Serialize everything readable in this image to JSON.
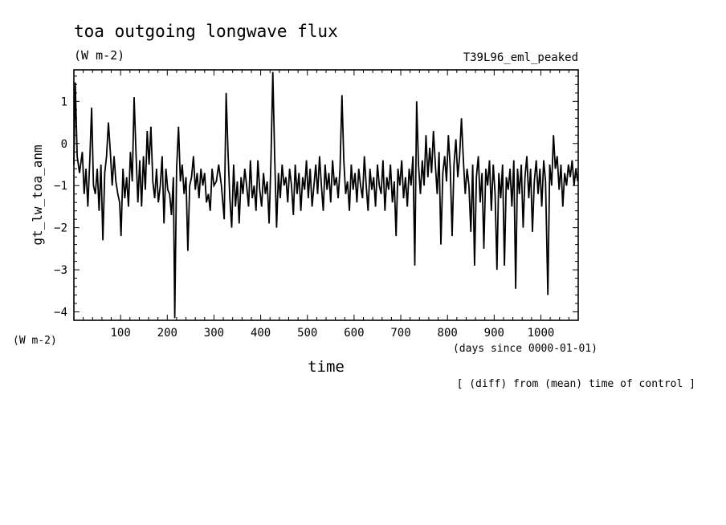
{
  "chart_data": {
    "type": "line",
    "title": "toa outgoing longwave flux",
    "units": "(W m-2)",
    "experiment": "T39L96_eml_peaked",
    "ylabel": "gt_lw_toa_anm",
    "yunits": "(W m-2)",
    "xlabel": "time",
    "xunits": "(days since 0000-01-01)",
    "note": "[ (diff) from (mean) time of control ]",
    "xlim": [
      0,
      1080
    ],
    "ylim": [
      -4.2,
      1.75
    ],
    "xticks": [
      100,
      200,
      300,
      400,
      500,
      600,
      700,
      800,
      900,
      1000
    ],
    "yticks": [
      1,
      0,
      -1,
      -2,
      -3,
      -4
    ],
    "xtick_labels": [
      "100",
      "200",
      "300",
      "400",
      "500",
      "600",
      "700",
      "800",
      "900",
      "1000"
    ],
    "ytick_labels": [
      "1",
      "0",
      "−1",
      "−2",
      "−3",
      "−4"
    ],
    "line_color": "#000000",
    "keypoints": [
      [
        0,
        -0.5
      ],
      [
        3,
        1.45
      ],
      [
        7,
        -0.3
      ],
      [
        12,
        -0.7
      ],
      [
        18,
        -0.2
      ],
      [
        22,
        -1.2
      ],
      [
        26,
        -0.6
      ],
      [
        30,
        -1.5
      ],
      [
        34,
        -0.4
      ],
      [
        38,
        0.85
      ],
      [
        42,
        -1.0
      ],
      [
        46,
        -1.2
      ],
      [
        50,
        -0.6
      ],
      [
        54,
        -1.6
      ],
      [
        58,
        -0.5
      ],
      [
        62,
        -2.3
      ],
      [
        66,
        -0.7
      ],
      [
        70,
        -0.3
      ],
      [
        74,
        0.5
      ],
      [
        78,
        -0.2
      ],
      [
        82,
        -1.0
      ],
      [
        86,
        -0.3
      ],
      [
        90,
        -0.9
      ],
      [
        94,
        -1.2
      ],
      [
        98,
        -1.4
      ],
      [
        101,
        -2.2
      ],
      [
        105,
        -0.6
      ],
      [
        109,
        -1.3
      ],
      [
        113,
        -0.8
      ],
      [
        117,
        -1.5
      ],
      [
        121,
        -0.2
      ],
      [
        125,
        -0.9
      ],
      [
        129,
        1.1
      ],
      [
        133,
        -0.2
      ],
      [
        137,
        -1.4
      ],
      [
        141,
        -0.4
      ],
      [
        145,
        -1.5
      ],
      [
        149,
        -0.3
      ],
      [
        153,
        -1.1
      ],
      [
        157,
        0.3
      ],
      [
        161,
        -0.5
      ],
      [
        165,
        0.4
      ],
      [
        169,
        -0.9
      ],
      [
        173,
        -1.3
      ],
      [
        177,
        -0.6
      ],
      [
        181,
        -1.4
      ],
      [
        185,
        -1.0
      ],
      [
        189,
        -0.3
      ],
      [
        193,
        -1.9
      ],
      [
        197,
        -0.6
      ],
      [
        201,
        -1.1
      ],
      [
        205,
        -1.2
      ],
      [
        209,
        -1.7
      ],
      [
        213,
        -0.8
      ],
      [
        216,
        -4.15
      ],
      [
        220,
        -0.6
      ],
      [
        224,
        0.4
      ],
      [
        228,
        -0.9
      ],
      [
        232,
        -0.5
      ],
      [
        236,
        -1.2
      ],
      [
        240,
        -0.8
      ],
      [
        244,
        -2.55
      ],
      [
        248,
        -1.0
      ],
      [
        252,
        -0.8
      ],
      [
        256,
        -0.3
      ],
      [
        260,
        -1.1
      ],
      [
        264,
        -0.7
      ],
      [
        268,
        -1.3
      ],
      [
        272,
        -0.6
      ],
      [
        276,
        -1.0
      ],
      [
        280,
        -0.7
      ],
      [
        284,
        -1.4
      ],
      [
        288,
        -1.2
      ],
      [
        292,
        -1.6
      ],
      [
        296,
        -0.6
      ],
      [
        300,
        -1.0
      ],
      [
        305,
        -0.9
      ],
      [
        310,
        -0.5
      ],
      [
        316,
        -1.0
      ],
      [
        322,
        -1.8
      ],
      [
        326,
        1.2
      ],
      [
        330,
        -0.2
      ],
      [
        334,
        -1.3
      ],
      [
        338,
        -2.0
      ],
      [
        342,
        -0.5
      ],
      [
        346,
        -1.5
      ],
      [
        350,
        -0.9
      ],
      [
        354,
        -1.9
      ],
      [
        358,
        -0.8
      ],
      [
        362,
        -1.2
      ],
      [
        366,
        -0.6
      ],
      [
        370,
        -1.0
      ],
      [
        374,
        -1.5
      ],
      [
        378,
        -0.4
      ],
      [
        382,
        -1.3
      ],
      [
        386,
        -1.0
      ],
      [
        390,
        -1.6
      ],
      [
        394,
        -0.4
      ],
      [
        398,
        -1.1
      ],
      [
        402,
        -1.5
      ],
      [
        406,
        -0.7
      ],
      [
        410,
        -1.2
      ],
      [
        414,
        -0.9
      ],
      [
        418,
        -1.9
      ],
      [
        422,
        -0.4
      ],
      [
        426,
        1.7
      ],
      [
        430,
        -0.3
      ],
      [
        434,
        -2.0
      ],
      [
        438,
        -0.7
      ],
      [
        442,
        -1.3
      ],
      [
        446,
        -0.5
      ],
      [
        450,
        -1.0
      ],
      [
        454,
        -0.8
      ],
      [
        458,
        -1.4
      ],
      [
        462,
        -0.6
      ],
      [
        466,
        -1.0
      ],
      [
        470,
        -1.7
      ],
      [
        474,
        -0.5
      ],
      [
        478,
        -1.2
      ],
      [
        482,
        -0.7
      ],
      [
        486,
        -1.6
      ],
      [
        490,
        -0.8
      ],
      [
        494,
        -1.1
      ],
      [
        498,
        -0.4
      ],
      [
        502,
        -1.3
      ],
      [
        506,
        -0.6
      ],
      [
        510,
        -1.5
      ],
      [
        514,
        -1.0
      ],
      [
        518,
        -0.5
      ],
      [
        522,
        -1.2
      ],
      [
        526,
        -0.3
      ],
      [
        530,
        -1.0
      ],
      [
        534,
        -1.6
      ],
      [
        538,
        -0.5
      ],
      [
        542,
        -1.1
      ],
      [
        546,
        -0.7
      ],
      [
        550,
        -1.4
      ],
      [
        554,
        -0.4
      ],
      [
        558,
        -1.0
      ],
      [
        562,
        -0.8
      ],
      [
        566,
        -1.3
      ],
      [
        570,
        -0.6
      ],
      [
        574,
        1.15
      ],
      [
        578,
        -0.4
      ],
      [
        582,
        -1.2
      ],
      [
        586,
        -0.9
      ],
      [
        590,
        -1.6
      ],
      [
        594,
        -0.5
      ],
      [
        598,
        -1.1
      ],
      [
        602,
        -0.7
      ],
      [
        606,
        -1.4
      ],
      [
        610,
        -0.6
      ],
      [
        614,
        -1.0
      ],
      [
        618,
        -1.3
      ],
      [
        622,
        -0.3
      ],
      [
        626,
        -1.0
      ],
      [
        630,
        -1.6
      ],
      [
        634,
        -0.6
      ],
      [
        638,
        -1.1
      ],
      [
        642,
        -0.8
      ],
      [
        646,
        -1.5
      ],
      [
        650,
        -0.5
      ],
      [
        654,
        -1.0
      ],
      [
        658,
        -1.2
      ],
      [
        662,
        -0.4
      ],
      [
        666,
        -1.6
      ],
      [
        670,
        -0.8
      ],
      [
        674,
        -1.1
      ],
      [
        678,
        -0.5
      ],
      [
        682,
        -1.4
      ],
      [
        686,
        -0.9
      ],
      [
        690,
        -2.2
      ],
      [
        694,
        -0.6
      ],
      [
        698,
        -1.0
      ],
      [
        702,
        -0.4
      ],
      [
        706,
        -1.3
      ],
      [
        710,
        -0.8
      ],
      [
        714,
        -1.5
      ],
      [
        718,
        -0.6
      ],
      [
        722,
        -1.0
      ],
      [
        726,
        -0.3
      ],
      [
        730,
        -2.9
      ],
      [
        734,
        1.0
      ],
      [
        738,
        -0.5
      ],
      [
        742,
        -1.2
      ],
      [
        746,
        -0.4
      ],
      [
        750,
        -1.0
      ],
      [
        754,
        0.2
      ],
      [
        758,
        -0.8
      ],
      [
        762,
        -0.1
      ],
      [
        766,
        -0.7
      ],
      [
        770,
        0.3
      ],
      [
        774,
        -0.5
      ],
      [
        778,
        -1.2
      ],
      [
        782,
        -0.2
      ],
      [
        786,
        -2.4
      ],
      [
        790,
        -0.7
      ],
      [
        794,
        -0.3
      ],
      [
        798,
        -0.9
      ],
      [
        802,
        0.2
      ],
      [
        806,
        -0.6
      ],
      [
        810,
        -2.2
      ],
      [
        814,
        -0.5
      ],
      [
        818,
        0.1
      ],
      [
        822,
        -0.8
      ],
      [
        826,
        -0.3
      ],
      [
        830,
        0.6
      ],
      [
        834,
        -0.4
      ],
      [
        838,
        -1.2
      ],
      [
        842,
        -0.6
      ],
      [
        846,
        -1.0
      ],
      [
        850,
        -2.1
      ],
      [
        854,
        -0.5
      ],
      [
        858,
        -2.9
      ],
      [
        862,
        -0.8
      ],
      [
        866,
        -0.3
      ],
      [
        870,
        -1.4
      ],
      [
        874,
        -0.7
      ],
      [
        878,
        -2.5
      ],
      [
        882,
        -0.6
      ],
      [
        886,
        -1.0
      ],
      [
        890,
        -0.4
      ],
      [
        894,
        -1.6
      ],
      [
        898,
        -0.5
      ],
      [
        902,
        -1.2
      ],
      [
        906,
        -3.0
      ],
      [
        910,
        -0.7
      ],
      [
        914,
        -1.3
      ],
      [
        918,
        -0.5
      ],
      [
        922,
        -2.9
      ],
      [
        926,
        -0.8
      ],
      [
        930,
        -1.1
      ],
      [
        934,
        -0.6
      ],
      [
        938,
        -1.5
      ],
      [
        942,
        -0.4
      ],
      [
        946,
        -3.45
      ],
      [
        950,
        -0.6
      ],
      [
        954,
        -1.2
      ],
      [
        958,
        -0.5
      ],
      [
        962,
        -2.0
      ],
      [
        966,
        -0.8
      ],
      [
        970,
        -0.3
      ],
      [
        974,
        -1.3
      ],
      [
        978,
        -0.6
      ],
      [
        982,
        -2.1
      ],
      [
        986,
        -0.9
      ],
      [
        990,
        -0.4
      ],
      [
        994,
        -1.2
      ],
      [
        998,
        -0.6
      ],
      [
        1002,
        -1.5
      ],
      [
        1006,
        -0.4
      ],
      [
        1010,
        -0.9
      ],
      [
        1015,
        -3.6
      ],
      [
        1019,
        -0.5
      ],
      [
        1023,
        -1.0
      ],
      [
        1027,
        0.2
      ],
      [
        1031,
        -0.6
      ],
      [
        1035,
        -0.3
      ],
      [
        1039,
        -1.1
      ],
      [
        1043,
        -0.5
      ],
      [
        1047,
        -1.5
      ],
      [
        1051,
        -0.7
      ],
      [
        1055,
        -1.0
      ],
      [
        1059,
        -0.5
      ],
      [
        1063,
        -0.8
      ],
      [
        1067,
        -0.4
      ],
      [
        1071,
        -1.0
      ],
      [
        1075,
        -0.6
      ],
      [
        1079,
        -0.9
      ]
    ]
  }
}
